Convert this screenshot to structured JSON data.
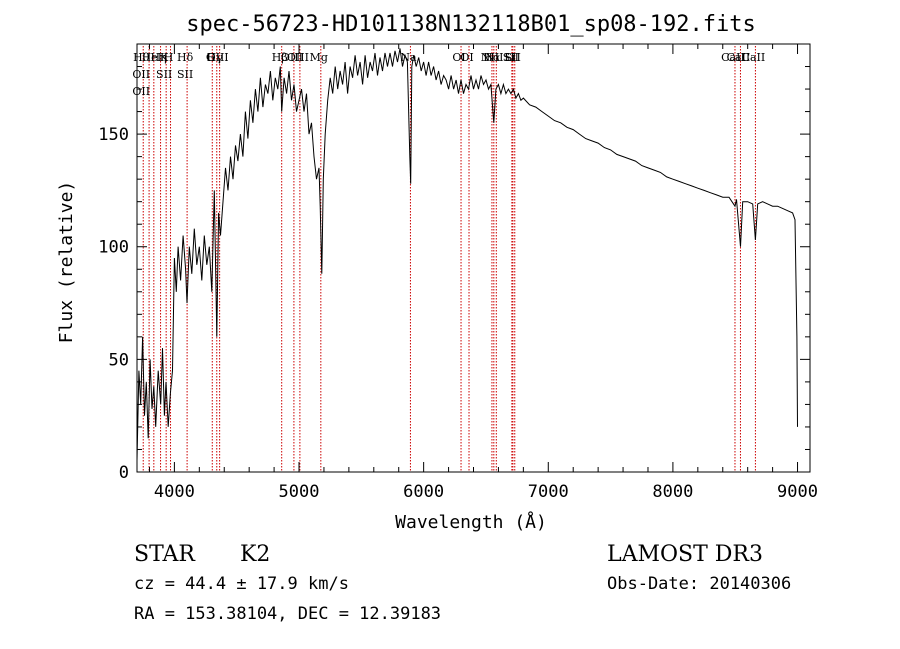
{
  "chart_data": {
    "type": "line",
    "title": "spec-56723-HD101138N132118B01_sp08-192.fits",
    "xlabel": "Wavelength (Å)",
    "ylabel": "Flux (relative)",
    "xlim": [
      3700,
      9100
    ],
    "ylim": [
      0,
      190
    ],
    "grid": false,
    "xticks": [
      4000,
      5000,
      6000,
      7000,
      8000,
      9000
    ],
    "xtick_labels": [
      "4000",
      "5000",
      "6000",
      "7000",
      "8000",
      "9000"
    ],
    "yticks": [
      0,
      50,
      100,
      150
    ],
    "ytick_labels": [
      "0",
      "50",
      "100",
      "150"
    ],
    "series": [
      {
        "values": [
          [
            3700,
            5
          ],
          [
            3715,
            45
          ],
          [
            3730,
            30
          ],
          [
            3745,
            60
          ],
          [
            3760,
            25
          ],
          [
            3775,
            40
          ],
          [
            3790,
            15
          ],
          [
            3805,
            50
          ],
          [
            3820,
            28
          ],
          [
            3835,
            38
          ],
          [
            3850,
            20
          ],
          [
            3870,
            45
          ],
          [
            3890,
            30
          ],
          [
            3905,
            55
          ],
          [
            3920,
            25
          ],
          [
            3933,
            40
          ],
          [
            3950,
            20
          ],
          [
            3968,
            35
          ],
          [
            3985,
            45
          ],
          [
            4000,
            95
          ],
          [
            4015,
            80
          ],
          [
            4030,
            100
          ],
          [
            4050,
            85
          ],
          [
            4070,
            105
          ],
          [
            4090,
            90
          ],
          [
            4101,
            75
          ],
          [
            4120,
            100
          ],
          [
            4140,
            88
          ],
          [
            4160,
            108
          ],
          [
            4180,
            92
          ],
          [
            4200,
            100
          ],
          [
            4220,
            85
          ],
          [
            4240,
            105
          ],
          [
            4260,
            92
          ],
          [
            4280,
            100
          ],
          [
            4300,
            80
          ],
          [
            4320,
            125
          ],
          [
            4340,
            60
          ],
          [
            4355,
            115
          ],
          [
            4370,
            105
          ],
          [
            4390,
            120
          ],
          [
            4410,
            135
          ],
          [
            4430,
            125
          ],
          [
            4450,
            140
          ],
          [
            4470,
            130
          ],
          [
            4490,
            145
          ],
          [
            4510,
            138
          ],
          [
            4530,
            150
          ],
          [
            4550,
            140
          ],
          [
            4570,
            160
          ],
          [
            4590,
            148
          ],
          [
            4610,
            165
          ],
          [
            4630,
            155
          ],
          [
            4650,
            170
          ],
          [
            4670,
            160
          ],
          [
            4690,
            175
          ],
          [
            4710,
            162
          ],
          [
            4730,
            172
          ],
          [
            4750,
            168
          ],
          [
            4770,
            178
          ],
          [
            4790,
            165
          ],
          [
            4810,
            175
          ],
          [
            4830,
            170
          ],
          [
            4850,
            180
          ],
          [
            4861,
            160
          ],
          [
            4880,
            175
          ],
          [
            4900,
            168
          ],
          [
            4920,
            178
          ],
          [
            4940,
            165
          ],
          [
            4960,
            172
          ],
          [
            4980,
            160
          ],
          [
            5000,
            165
          ],
          [
            5020,
            170
          ],
          [
            5040,
            160
          ],
          [
            5060,
            168
          ],
          [
            5080,
            150
          ],
          [
            5100,
            155
          ],
          [
            5120,
            140
          ],
          [
            5140,
            130
          ],
          [
            5160,
            135
          ],
          [
            5170,
            118
          ],
          [
            5183,
            88
          ],
          [
            5195,
            130
          ],
          [
            5210,
            150
          ],
          [
            5230,
            165
          ],
          [
            5250,
            175
          ],
          [
            5270,
            168
          ],
          [
            5290,
            180
          ],
          [
            5310,
            170
          ],
          [
            5330,
            178
          ],
          [
            5350,
            172
          ],
          [
            5370,
            182
          ],
          [
            5390,
            168
          ],
          [
            5410,
            180
          ],
          [
            5430,
            175
          ],
          [
            5450,
            185
          ],
          [
            5470,
            176
          ],
          [
            5490,
            182
          ],
          [
            5510,
            172
          ],
          [
            5530,
            185
          ],
          [
            5550,
            175
          ],
          [
            5570,
            182
          ],
          [
            5590,
            178
          ],
          [
            5610,
            186
          ],
          [
            5630,
            176
          ],
          [
            5650,
            184
          ],
          [
            5670,
            178
          ],
          [
            5690,
            186
          ],
          [
            5710,
            180
          ],
          [
            5730,
            186
          ],
          [
            5750,
            180
          ],
          [
            5770,
            187
          ],
          [
            5790,
            182
          ],
          [
            5810,
            188
          ],
          [
            5830,
            180
          ],
          [
            5850,
            185
          ],
          [
            5870,
            182
          ],
          [
            5889,
            140
          ],
          [
            5896,
            128
          ],
          [
            5905,
            180
          ],
          [
            5920,
            185
          ],
          [
            5940,
            180
          ],
          [
            5960,
            184
          ],
          [
            5980,
            178
          ],
          [
            6000,
            182
          ],
          [
            6020,
            176
          ],
          [
            6040,
            182
          ],
          [
            6060,
            176
          ],
          [
            6080,
            180
          ],
          [
            6100,
            174
          ],
          [
            6120,
            178
          ],
          [
            6140,
            172
          ],
          [
            6160,
            176
          ],
          [
            6180,
            174
          ],
          [
            6200,
            170
          ],
          [
            6220,
            176
          ],
          [
            6240,
            170
          ],
          [
            6260,
            174
          ],
          [
            6280,
            168
          ],
          [
            6300,
            174
          ],
          [
            6320,
            168
          ],
          [
            6340,
            172
          ],
          [
            6360,
            170
          ],
          [
            6380,
            176
          ],
          [
            6400,
            170
          ],
          [
            6420,
            174
          ],
          [
            6440,
            170
          ],
          [
            6460,
            176
          ],
          [
            6480,
            172
          ],
          [
            6500,
            174
          ],
          [
            6520,
            170
          ],
          [
            6540,
            172
          ],
          [
            6563,
            155
          ],
          [
            6580,
            170
          ],
          [
            6600,
            172
          ],
          [
            6620,
            168
          ],
          [
            6640,
            172
          ],
          [
            6660,
            168
          ],
          [
            6680,
            170
          ],
          [
            6700,
            168
          ],
          [
            6720,
            170
          ],
          [
            6740,
            166
          ],
          [
            6760,
            168
          ],
          [
            6780,
            165
          ],
          [
            6800,
            166
          ],
          [
            6850,
            163
          ],
          [
            6900,
            162
          ],
          [
            6950,
            160
          ],
          [
            7000,
            158
          ],
          [
            7050,
            156
          ],
          [
            7100,
            155
          ],
          [
            7150,
            153
          ],
          [
            7200,
            152
          ],
          [
            7250,
            150
          ],
          [
            7300,
            148
          ],
          [
            7350,
            147
          ],
          [
            7400,
            146
          ],
          [
            7450,
            144
          ],
          [
            7500,
            143
          ],
          [
            7550,
            141
          ],
          [
            7600,
            140
          ],
          [
            7650,
            139
          ],
          [
            7700,
            138
          ],
          [
            7750,
            136
          ],
          [
            7800,
            135
          ],
          [
            7850,
            134
          ],
          [
            7900,
            133
          ],
          [
            7950,
            131
          ],
          [
            8000,
            130
          ],
          [
            8050,
            129
          ],
          [
            8100,
            128
          ],
          [
            8150,
            127
          ],
          [
            8200,
            126
          ],
          [
            8250,
            125
          ],
          [
            8300,
            124
          ],
          [
            8350,
            123
          ],
          [
            8400,
            122
          ],
          [
            8450,
            122
          ],
          [
            8498,
            118
          ],
          [
            8510,
            121
          ],
          [
            8542,
            100
          ],
          [
            8560,
            120
          ],
          [
            8600,
            120
          ],
          [
            8640,
            119
          ],
          [
            8662,
            103
          ],
          [
            8680,
            119
          ],
          [
            8720,
            120
          ],
          [
            8760,
            119
          ],
          [
            8800,
            118
          ],
          [
            8840,
            118
          ],
          [
            8880,
            117
          ],
          [
            8920,
            116
          ],
          [
            8960,
            115
          ],
          [
            8980,
            112
          ],
          [
            8995,
            60
          ],
          [
            9000,
            20
          ]
        ]
      }
    ],
    "line_markers": [
      {
        "x": 3750,
        "labels": [
          "Hθ",
          "OII",
          "OII"
        ]
      },
      {
        "x": 3797,
        "labels": []
      },
      {
        "x": 3835,
        "labels": [
          "HeI"
        ]
      },
      {
        "x": 3889,
        "labels": [
          "Hη"
        ]
      },
      {
        "x": 3934,
        "labels": [
          "K",
          "SII"
        ]
      },
      {
        "x": 3969,
        "labels": [
          "H"
        ]
      },
      {
        "x": 4102,
        "labels": [
          "Hδ",
          "SII"
        ]
      },
      {
        "x": 4304,
        "labels": [
          "G"
        ]
      },
      {
        "x": 4340,
        "labels": [
          "Hγ"
        ]
      },
      {
        "x": 4363,
        "labels": [
          "OIII"
        ]
      },
      {
        "x": 4861,
        "labels": [
          "Hβ"
        ]
      },
      {
        "x": 4959,
        "labels": [
          "OIII"
        ]
      },
      {
        "x": 5007,
        "labels": [
          "OIII"
        ]
      },
      {
        "x": 5175,
        "labels": [
          "Mg"
        ]
      },
      {
        "x": 5894,
        "labels": [
          "Na"
        ]
      },
      {
        "x": 6300,
        "labels": [
          "OI"
        ]
      },
      {
        "x": 6364,
        "labels": [
          "OI"
        ]
      },
      {
        "x": 6548,
        "labels": [
          "NII"
        ]
      },
      {
        "x": 6563,
        "labels": [
          "Hα"
        ]
      },
      {
        "x": 6583,
        "labels": [
          "NII"
        ]
      },
      {
        "x": 6708,
        "labels": [
          "Li"
        ]
      },
      {
        "x": 6716,
        "labels": [
          "SII"
        ]
      },
      {
        "x": 6731,
        "labels": [
          "SII"
        ]
      },
      {
        "x": 8498,
        "labels": [
          "CaII"
        ]
      },
      {
        "x": 8542,
        "labels": [
          "CaII"
        ]
      },
      {
        "x": 8662,
        "labels": [
          "CaII"
        ]
      }
    ]
  },
  "info": {
    "class": "STAR",
    "subclass": "K2",
    "survey": "LAMOST DR3",
    "cz": "cz = 44.4 ± 17.9 km/s",
    "obs_date": "Obs-Date: 20140306",
    "coords": "RA = 153.38104, DEC =  12.39183"
  },
  "colors": {
    "line_marker": "#cc0000",
    "spectrum": "#000000"
  }
}
